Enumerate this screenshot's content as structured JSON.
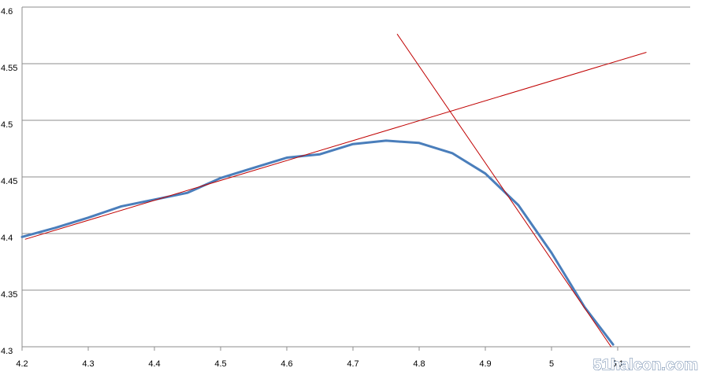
{
  "chart_data": {
    "type": "line",
    "xlim": [
      4.2,
      5.2
    ],
    "xticks": [
      4.2,
      4.3,
      4.4,
      4.5,
      4.6,
      4.7,
      4.8,
      4.9,
      5,
      5.1
    ],
    "ylim": [
      4.3,
      4.6
    ],
    "yticks": [
      4.3,
      4.35,
      4.4,
      4.45,
      4.5,
      4.55,
      4.6
    ],
    "grid": true,
    "series": [
      {
        "color": "#4a7ebb",
        "width": 3,
        "x": [
          4.2,
          4.25,
          4.3,
          4.35,
          4.4,
          4.45,
          4.5,
          4.55,
          4.6,
          4.65,
          4.7,
          4.75,
          4.8,
          4.85,
          4.9,
          4.95,
          5.0,
          5.05,
          5.093
        ],
        "values": [
          4.397,
          4.405,
          4.414,
          4.424,
          4.43,
          4.436,
          4.449,
          4.458,
          4.467,
          4.47,
          4.479,
          4.482,
          4.48,
          4.471,
          4.453,
          4.425,
          4.383,
          4.335,
          4.302
        ]
      },
      {
        "color": "#c00000",
        "width": 1,
        "x": [
          4.205,
          5.143
        ],
        "values": [
          4.395,
          4.56
        ]
      },
      {
        "color": "#c00000",
        "width": 1,
        "x": [
          4.767,
          5.09
        ],
        "values": [
          4.576,
          4.3
        ]
      }
    ],
    "watermark": "51halcon.com"
  }
}
